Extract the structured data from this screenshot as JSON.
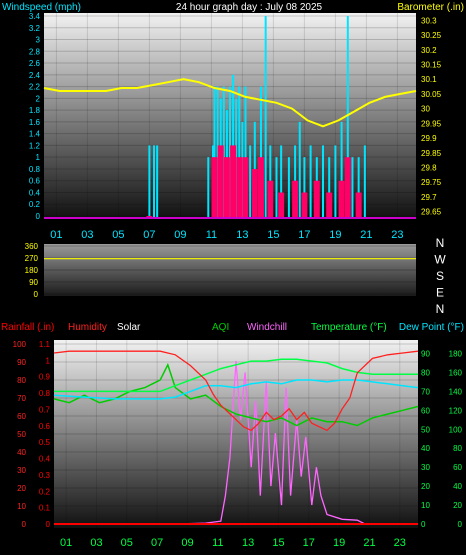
{
  "chart_data": [
    {
      "type": "bar",
      "panel": "wind-barometer",
      "title": "24 hour graph day : July 08 2025",
      "ylabel_left": "Windspeed (mph)",
      "ylabel_right": "Barometer (.in)",
      "x_ticks": [
        "01",
        "03",
        "05",
        "07",
        "09",
        "11",
        "13",
        "15",
        "17",
        "19",
        "21",
        "23"
      ],
      "x_range": [
        0,
        24
      ],
      "ylim_left": [
        0,
        3.4
      ],
      "yticks_left": [
        "0",
        "0.2",
        "0.4",
        "0.6",
        "0.8",
        "1",
        "1.2",
        "1.4",
        "1.6",
        "1.8",
        "2",
        "2.2",
        "2.4",
        "2.6",
        "2.8",
        "3",
        "3.2",
        "3.4"
      ],
      "ylim_right": [
        29.625,
        30.325
      ],
      "yticks_right": [
        "29.65",
        "29.7",
        "29.75",
        "29.8",
        "29.85",
        "29.9",
        "29.95",
        "30",
        "30.05",
        "30.1",
        "30.15",
        "30.2",
        "30.25",
        "30.3"
      ],
      "colors": {
        "wind": "#00e5ff",
        "gust": "#ff0066",
        "barometer": "#ffff00",
        "baseline": "#cc00cc"
      },
      "barometer": {
        "x": [
          0,
          1,
          2,
          3,
          4,
          5,
          6,
          7,
          8,
          9,
          10,
          11,
          12,
          13,
          14,
          15,
          16,
          16.5,
          17,
          18,
          19,
          20,
          21,
          22,
          23,
          24
        ],
        "y": [
          30.07,
          30.06,
          30.06,
          30.06,
          30.06,
          30.07,
          30.07,
          30.08,
          30.09,
          30.1,
          30.09,
          30.07,
          30.06,
          30.04,
          30.03,
          30.02,
          30.0,
          29.98,
          29.96,
          29.94,
          29.96,
          29.99,
          30.02,
          30.04,
          30.05,
          30.06
        ]
      },
      "wind_gusts": [
        {
          "x": 6.8,
          "v": 1.2
        },
        {
          "x": 7.1,
          "v": 1.2
        },
        {
          "x": 7.3,
          "v": 1.2
        },
        {
          "x": 10.6,
          "v": 1.0
        },
        {
          "x": 10.9,
          "v": 1.2
        },
        {
          "x": 11.0,
          "v": 2.2
        },
        {
          "x": 11.2,
          "v": 2.2
        },
        {
          "x": 11.4,
          "v": 2.0
        },
        {
          "x": 11.6,
          "v": 2.2
        },
        {
          "x": 11.8,
          "v": 1.8
        },
        {
          "x": 12.0,
          "v": 2.2
        },
        {
          "x": 12.2,
          "v": 2.4
        },
        {
          "x": 12.4,
          "v": 2.0
        },
        {
          "x": 12.6,
          "v": 2.2
        },
        {
          "x": 12.8,
          "v": 1.6
        },
        {
          "x": 13.0,
          "v": 2.2
        },
        {
          "x": 13.3,
          "v": 1.2
        },
        {
          "x": 13.6,
          "v": 1.6
        },
        {
          "x": 14.0,
          "v": 2.2
        },
        {
          "x": 14.3,
          "v": 3.4
        },
        {
          "x": 14.6,
          "v": 1.2
        },
        {
          "x": 15.0,
          "v": 1.0
        },
        {
          "x": 15.3,
          "v": 1.2
        },
        {
          "x": 15.8,
          "v": 1.0
        },
        {
          "x": 16.2,
          "v": 1.2
        },
        {
          "x": 16.5,
          "v": 1.6
        },
        {
          "x": 16.8,
          "v": 1.0
        },
        {
          "x": 17.2,
          "v": 1.2
        },
        {
          "x": 17.6,
          "v": 1.0
        },
        {
          "x": 18.0,
          "v": 1.2
        },
        {
          "x": 18.4,
          "v": 1.0
        },
        {
          "x": 18.8,
          "v": 1.2
        },
        {
          "x": 19.2,
          "v": 1.6
        },
        {
          "x": 19.6,
          "v": 3.4
        },
        {
          "x": 19.9,
          "v": 1.0
        },
        {
          "x": 20.3,
          "v": 1.0
        },
        {
          "x": 20.7,
          "v": 1.2
        }
      ],
      "wind_avg": [
        {
          "x": 6.8,
          "v": 0.0
        },
        {
          "x": 11.0,
          "v": 1.0
        },
        {
          "x": 11.4,
          "v": 1.2
        },
        {
          "x": 11.8,
          "v": 1.0
        },
        {
          "x": 12.2,
          "v": 1.2
        },
        {
          "x": 12.6,
          "v": 1.0
        },
        {
          "x": 13.0,
          "v": 1.0
        },
        {
          "x": 13.6,
          "v": 0.8
        },
        {
          "x": 14.0,
          "v": 1.0
        },
        {
          "x": 14.6,
          "v": 0.6
        },
        {
          "x": 15.3,
          "v": 0.4
        },
        {
          "x": 16.2,
          "v": 0.6
        },
        {
          "x": 16.8,
          "v": 0.4
        },
        {
          "x": 17.6,
          "v": 0.6
        },
        {
          "x": 18.4,
          "v": 0.4
        },
        {
          "x": 19.2,
          "v": 0.6
        },
        {
          "x": 19.6,
          "v": 1.0
        },
        {
          "x": 20.3,
          "v": 0.4
        }
      ]
    },
    {
      "type": "line",
      "panel": "wind-direction",
      "ylim": [
        0,
        360
      ],
      "yticks": [
        "0",
        "90",
        "180",
        "270",
        "360"
      ],
      "compass_labels": [
        "N",
        "W",
        "S",
        "E",
        "N"
      ],
      "colors": {
        "direction": "#ffff00"
      },
      "direction": {
        "x": [
          0,
          24
        ],
        "y": [
          265,
          265
        ]
      }
    },
    {
      "type": "line",
      "panel": "temp-humidity-rain",
      "legend": {
        "rainfall": "Rainfall (.in)",
        "humidity": "Humidity",
        "solar": "Solar",
        "aqi": "AQI",
        "windchill": "Windchill",
        "temperature": "Temperature (°F)",
        "dewpoint": "Dew Point (°F)"
      },
      "x_ticks": [
        "01",
        "03",
        "05",
        "07",
        "09",
        "11",
        "13",
        "15",
        "17",
        "19",
        "21",
        "23"
      ],
      "x_range": [
        0,
        24
      ],
      "ylim_rain": [
        0,
        1.1
      ],
      "yticks_rain": [
        "0",
        "0.1",
        "0.2",
        "0.3",
        "0.4",
        "0.5",
        "0.6",
        "0.7",
        "0.8",
        "0.9",
        "1",
        "1.1"
      ],
      "ylim_humidity": [
        0,
        100
      ],
      "yticks_humidity": [
        "0",
        "10",
        "20",
        "30",
        "40",
        "50",
        "60",
        "70",
        "80",
        "90",
        "100"
      ],
      "ylim_temp": [
        0,
        95
      ],
      "yticks_temp": [
        "0",
        "10",
        "20",
        "30",
        "40",
        "50",
        "60",
        "70",
        "80",
        "90"
      ],
      "ylim_solar": [
        0,
        190
      ],
      "yticks_solar": [
        "0",
        "20",
        "40",
        "60",
        "80",
        "100",
        "120",
        "140",
        "160",
        "180"
      ],
      "colors": {
        "rain": "#ff0000",
        "humidity": "#ff2020",
        "temperature": "#00ff44",
        "dewpoint": "#00e5ff",
        "aqi": "#00cc00",
        "windchill": "#ff66ff",
        "solar": "#ffffff"
      },
      "humidity": {
        "x": [
          0,
          1,
          3,
          5,
          7,
          8,
          9,
          10,
          10.5,
          11,
          11.5,
          12,
          12.5,
          13,
          13.5,
          14,
          14.5,
          15,
          15.5,
          16,
          16.5,
          17,
          17.5,
          18,
          18.5,
          19,
          19.5,
          20,
          21,
          22,
          23,
          24
        ],
        "y": [
          95,
          96,
          96,
          96,
          96,
          94,
          88,
          80,
          72,
          66,
          62,
          58,
          54,
          52,
          56,
          62,
          58,
          60,
          64,
          58,
          62,
          56,
          54,
          52,
          56,
          64,
          70,
          84,
          92,
          94,
          95,
          96
        ]
      },
      "temperature": {
        "x": [
          0,
          2,
          4,
          6,
          7,
          8,
          9,
          10,
          11,
          12,
          13,
          14,
          15,
          16,
          17,
          18,
          19,
          20,
          21,
          22,
          23,
          24
        ],
        "y": [
          70,
          70,
          70,
          70,
          70,
          73,
          76,
          79,
          82,
          84,
          86,
          86,
          87,
          87,
          86,
          85,
          82,
          80,
          79,
          79,
          79,
          79
        ]
      },
      "dewpoint": {
        "x": [
          0,
          2,
          4,
          6,
          7,
          8,
          9,
          10,
          11,
          12,
          13,
          14,
          15,
          16,
          17,
          18,
          19,
          20,
          21,
          22,
          23,
          24
        ],
        "y": [
          68,
          67,
          66,
          66,
          66,
          67,
          70,
          73,
          73,
          72,
          74,
          75,
          74,
          76,
          76,
          75,
          76,
          76,
          75,
          74,
          73,
          72
        ]
      },
      "aqi": {
        "x": [
          0,
          1,
          2,
          3,
          4,
          5,
          6,
          7,
          7.5,
          8,
          9,
          10,
          11,
          12,
          13,
          14,
          15,
          16,
          17,
          18,
          19,
          20,
          21,
          22,
          23,
          24
        ],
        "y": [
          66,
          64,
          68,
          64,
          66,
          70,
          72,
          76,
          84,
          72,
          66,
          68,
          62,
          58,
          56,
          54,
          56,
          52,
          56,
          54,
          54,
          52,
          56,
          58,
          60,
          62
        ]
      },
      "windchill": {
        "x": [
          0,
          8,
          10,
          11,
          11.3,
          11.6,
          12,
          12.3,
          12.6,
          13,
          13.3,
          13.6,
          14,
          14.3,
          14.6,
          15,
          15.3,
          15.6,
          16,
          16.3,
          16.6,
          17,
          17.3,
          17.6,
          18,
          19,
          20,
          20.5,
          24
        ],
        "y": [
          0,
          0,
          1,
          3,
          30,
          70,
          172,
          110,
          160,
          60,
          130,
          30,
          150,
          40,
          96,
          20,
          144,
          30,
          110,
          50,
          92,
          20,
          60,
          30,
          10,
          5,
          4,
          0,
          0
        ]
      },
      "rain": {
        "x": [
          0,
          24
        ],
        "y": [
          0,
          0
        ]
      }
    }
  ]
}
